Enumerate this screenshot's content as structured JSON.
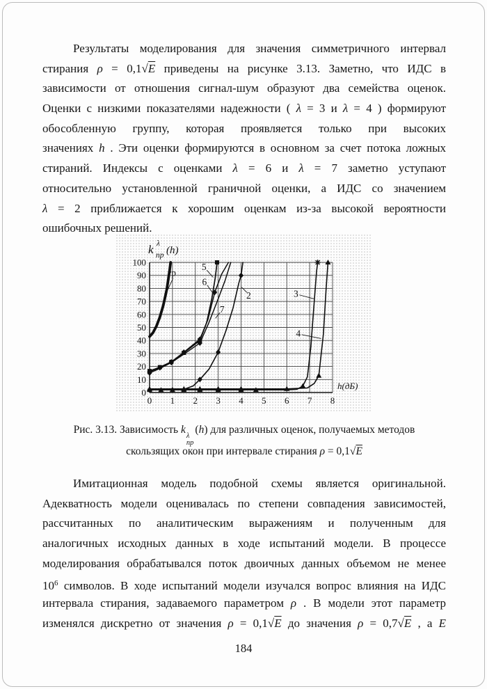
{
  "page_number": "184",
  "para1": {
    "lines": [
      [
        {
          "t": "Результаты моделирования для значения симметричного интервал"
        }
      ],
      [
        {
          "t": "стирания "
        },
        {
          "t": "ρ",
          "c": "i"
        },
        {
          "t": " = 0,1"
        },
        {
          "t": "√"
        },
        {
          "t": "E",
          "c": "ov"
        },
        {
          "t": " приведены на рисунке 3.13. Заметно, что ИДС в"
        }
      ],
      [
        {
          "t": "зависимости от отношения сигнал-шум образуют два семейства оценок."
        }
      ],
      [
        {
          "t": "Оценки с низкими показателями надежности ( "
        },
        {
          "t": "λ",
          "c": "i"
        },
        {
          "t": " = 3 и "
        },
        {
          "t": "λ",
          "c": "i"
        },
        {
          "t": " = 4 ) формируют"
        }
      ],
      [
        {
          "t": "обособленную группу, которая проявляется только при высоких"
        }
      ],
      [
        {
          "t": "значениях "
        },
        {
          "t": "h",
          "c": "i"
        },
        {
          "t": " . Эти оценки формируются в основном за счет потока ложных"
        }
      ],
      [
        {
          "t": "стираний. Индексы с оценками "
        },
        {
          "t": "λ",
          "c": "i"
        },
        {
          "t": " = 6 и "
        },
        {
          "t": "λ",
          "c": "i"
        },
        {
          "t": " = 7 заметно уступают"
        }
      ],
      [
        {
          "t": "относительно установленной граничной оценки, а ИДС со значением"
        }
      ],
      [
        {
          "t": "λ",
          "c": "i"
        },
        {
          "t": " = 2 приближается к хорошим оценкам из-за высокой вероятности"
        }
      ],
      [
        {
          "t": "ошибочных решений."
        }
      ]
    ]
  },
  "caption": {
    "lines": [
      [
        {
          "t": "Рис. 3.13. Зависимость "
        },
        {
          "t": "k",
          "c": "i"
        },
        {
          "t": "λ|пр",
          "c": "stk"
        },
        {
          "t": "("
        },
        {
          "t": "h",
          "c": "i"
        },
        {
          "t": ") для различных оценок, получаемых методов"
        }
      ],
      [
        {
          "t": "скользящих окон при интервале стирания "
        },
        {
          "t": "ρ",
          "c": "i"
        },
        {
          "t": " = 0,1"
        },
        {
          "t": "√"
        },
        {
          "t": "E",
          "c": "ov"
        }
      ]
    ]
  },
  "para2": {
    "lines": [
      [
        {
          "t": "Имитационная модель подобной схемы является оригинальной."
        }
      ],
      [
        {
          "t": "Адекватность модели оценивалась по степени совпадения зависимостей,"
        }
      ],
      [
        {
          "t": "рассчитанных по аналитическим выражениям и полученным для"
        }
      ],
      [
        {
          "t": "аналогичных исходных данных в ходе испытаний модели. В процессе"
        }
      ],
      [
        {
          "t": "моделирования  обрабатывался поток двоичных данных объемом не менее"
        }
      ],
      [
        {
          "t": "10"
        },
        {
          "t": "6",
          "c": "sup"
        },
        {
          "t": " символов. В ходе испытаний модели изучался вопрос влияния на ИДС"
        }
      ],
      [
        {
          "t": "интервала стирания, задаваемого параметром "
        },
        {
          "t": "ρ",
          "c": "i"
        },
        {
          "t": " . В модели этот параметр"
        }
      ],
      [
        {
          "t": "изменялся дискретно от значения "
        },
        {
          "t": "ρ",
          "c": "i"
        },
        {
          "t": " = 0,1"
        },
        {
          "t": "√"
        },
        {
          "t": "E",
          "c": "ov"
        },
        {
          "t": " до значения "
        },
        {
          "t": "ρ",
          "c": "i"
        },
        {
          "t": " = 0,7"
        },
        {
          "t": "√"
        },
        {
          "t": "E",
          "c": "ov"
        },
        {
          "t": " , а "
        },
        {
          "t": "E",
          "c": "i"
        }
      ]
    ]
  },
  "chart_data": {
    "type": "line",
    "title": "",
    "ylabel": {
      "base": "k",
      "sup": "λ",
      "sub": "пр",
      "arg": "(h)"
    },
    "xlabel": "h(дБ)",
    "xlim": [
      0,
      8
    ],
    "ylim": [
      0,
      100
    ],
    "xstep": 1,
    "ystep": 10,
    "grid": true,
    "legend_position": "none",
    "xticks": [
      "0",
      "1",
      "2",
      "3",
      "4",
      "5",
      "6",
      "7",
      "8"
    ],
    "yticks": [
      "0",
      "10",
      "20",
      "30",
      "40",
      "50",
      "60",
      "70",
      "80",
      "90",
      "100"
    ],
    "series": [
      {
        "name": "гр",
        "width": 3.8,
        "points": [
          [
            0,
            43
          ],
          [
            0.15,
            46
          ],
          [
            0.3,
            51
          ],
          [
            0.45,
            58
          ],
          [
            0.6,
            67
          ],
          [
            0.75,
            79
          ],
          [
            0.87,
            93
          ],
          [
            0.92,
            100
          ]
        ],
        "markers": []
      },
      {
        "name": "5",
        "width": 1.7,
        "points": [
          [
            0,
            16.5
          ],
          [
            0.45,
            19.5
          ],
          [
            0.95,
            23.5
          ],
          [
            1.5,
            30.5
          ],
          [
            2.2,
            40
          ],
          [
            2.5,
            54
          ],
          [
            2.72,
            72
          ],
          [
            2.87,
            88
          ],
          [
            2.95,
            100
          ]
        ],
        "markers": [
          {
            "shape": "square",
            "points": [
              [
                0,
                16.5
              ],
              [
                0.45,
                19.5
              ],
              [
                0.95,
                23.5
              ],
              [
                1.5,
                30.5
              ],
              [
                2.2,
                40
              ],
              [
                2.95,
                100
              ]
            ]
          }
        ]
      },
      {
        "name": "6",
        "width": 1.5,
        "points": [
          [
            0,
            16
          ],
          [
            0.45,
            19
          ],
          [
            0.95,
            23.5
          ],
          [
            1.5,
            31
          ],
          [
            2.2,
            41
          ],
          [
            2.55,
            56
          ],
          [
            2.85,
            77
          ],
          [
            3.15,
            91
          ],
          [
            3.45,
            100
          ]
        ],
        "markers": [
          {
            "shape": "diamond",
            "points": [
              [
                0,
                16
              ],
              [
                0.45,
                19
              ],
              [
                0.95,
                23.5
              ],
              [
                1.5,
                31
              ],
              [
                2.2,
                41
              ],
              [
                2.85,
                77
              ]
            ]
          }
        ]
      },
      {
        "name": "7",
        "width": 1.5,
        "points": [
          [
            0,
            15
          ],
          [
            0.45,
            18.5
          ],
          [
            0.95,
            23
          ],
          [
            1.5,
            29.5
          ],
          [
            2.2,
            38
          ],
          [
            2.6,
            54
          ],
          [
            3.0,
            72
          ],
          [
            3.3,
            86
          ],
          [
            3.55,
            100
          ]
        ],
        "markers": [
          {
            "shape": "diamond",
            "points": [
              [
                0,
                15
              ],
              [
                0.95,
                23
              ],
              [
                2.2,
                38
              ]
            ]
          }
        ]
      },
      {
        "name": "2",
        "width": 1.6,
        "points": [
          [
            0,
            2
          ],
          [
            0.5,
            2
          ],
          [
            1,
            2
          ],
          [
            1.5,
            2.5
          ],
          [
            1.9,
            5
          ],
          [
            2.2,
            10
          ],
          [
            2.6,
            18
          ],
          [
            3,
            31
          ],
          [
            3.35,
            48
          ],
          [
            3.65,
            65
          ],
          [
            3.9,
            84
          ],
          [
            4,
            90
          ],
          [
            4.08,
            100
          ]
        ],
        "markers": [
          {
            "shape": "diamond",
            "points": [
              [
                0,
                2
              ],
              [
                1,
                2
              ],
              [
                2.2,
                10
              ],
              [
                3,
                31
              ],
              [
                4,
                90
              ]
            ]
          }
        ]
      },
      {
        "name": "3",
        "width": 1.6,
        "points": [
          [
            0,
            2
          ],
          [
            1,
            2
          ],
          [
            2,
            2
          ],
          [
            3,
            2
          ],
          [
            4,
            2
          ],
          [
            5,
            2
          ],
          [
            6,
            2
          ],
          [
            6.45,
            2.5
          ],
          [
            6.7,
            5
          ],
          [
            6.9,
            12
          ],
          [
            7.05,
            35
          ],
          [
            7.2,
            70
          ],
          [
            7.3,
            93
          ],
          [
            7.35,
            100
          ]
        ],
        "markers": [
          {
            "shape": "triangle",
            "points": [
              [
                0,
                2
              ],
              [
                0.5,
                2
              ],
              [
                1,
                2
              ],
              [
                1.5,
                2
              ],
              [
                2.2,
                2
              ],
              [
                3,
                2
              ],
              [
                4,
                2
              ],
              [
                4.65,
                2
              ],
              [
                6.7,
                5
              ]
            ]
          },
          {
            "shape": "star",
            "points": [
              [
                7.35,
                100
              ]
            ]
          }
        ]
      },
      {
        "name": "4",
        "width": 1.6,
        "points": [
          [
            0,
            2.8
          ],
          [
            1,
            2.8
          ],
          [
            2,
            2.8
          ],
          [
            3,
            2.8
          ],
          [
            4,
            2.8
          ],
          [
            5,
            2.8
          ],
          [
            6,
            2.8
          ],
          [
            6.9,
            3.5
          ],
          [
            7.2,
            7
          ],
          [
            7.4,
            13
          ],
          [
            7.6,
            45
          ],
          [
            7.72,
            80
          ],
          [
            7.8,
            100
          ]
        ],
        "markers": [
          {
            "shape": "triangle",
            "points": [
              [
                0,
                2.8
              ],
              [
                1.5,
                2.8
              ],
              [
                2.2,
                2.8
              ],
              [
                3,
                2.8
              ],
              [
                4,
                2.8
              ],
              [
                6,
                2.8
              ],
              [
                7.4,
                13
              ],
              [
                7.8,
                100
              ]
            ]
          }
        ]
      }
    ],
    "callouts": [
      {
        "text": "гр",
        "x": 0.97,
        "y": 92,
        "lx1": 1.02,
        "ly1": 87.5,
        "lx2": 0.74,
        "ly2": 77
      },
      {
        "text": "5",
        "x": 2.38,
        "y": 96.5,
        "lx1": 2.5,
        "ly1": 94,
        "lx2": 2.78,
        "ly2": 88.5
      },
      {
        "text": "6",
        "x": 2.4,
        "y": 85,
        "lx1": 2.52,
        "ly1": 82.5,
        "lx2": 2.82,
        "ly2": 75
      },
      {
        "text": "7",
        "x": 3.17,
        "y": 64,
        "lx1": 3.08,
        "ly1": 61.5,
        "lx2": 2.88,
        "ly2": 57
      },
      {
        "text": "2",
        "x": 4.33,
        "y": 74.5,
        "lx1": 4.25,
        "ly1": 77,
        "lx2": 4.02,
        "ly2": 81
      },
      {
        "text": "3",
        "x": 6.4,
        "y": 76,
        "lx1": 6.55,
        "ly1": 75,
        "lx2": 7.18,
        "ly2": 72
      },
      {
        "text": "4",
        "x": 6.5,
        "y": 45.5,
        "lx1": 6.65,
        "ly1": 44.5,
        "lx2": 7.5,
        "ly2": 41.5
      }
    ]
  }
}
